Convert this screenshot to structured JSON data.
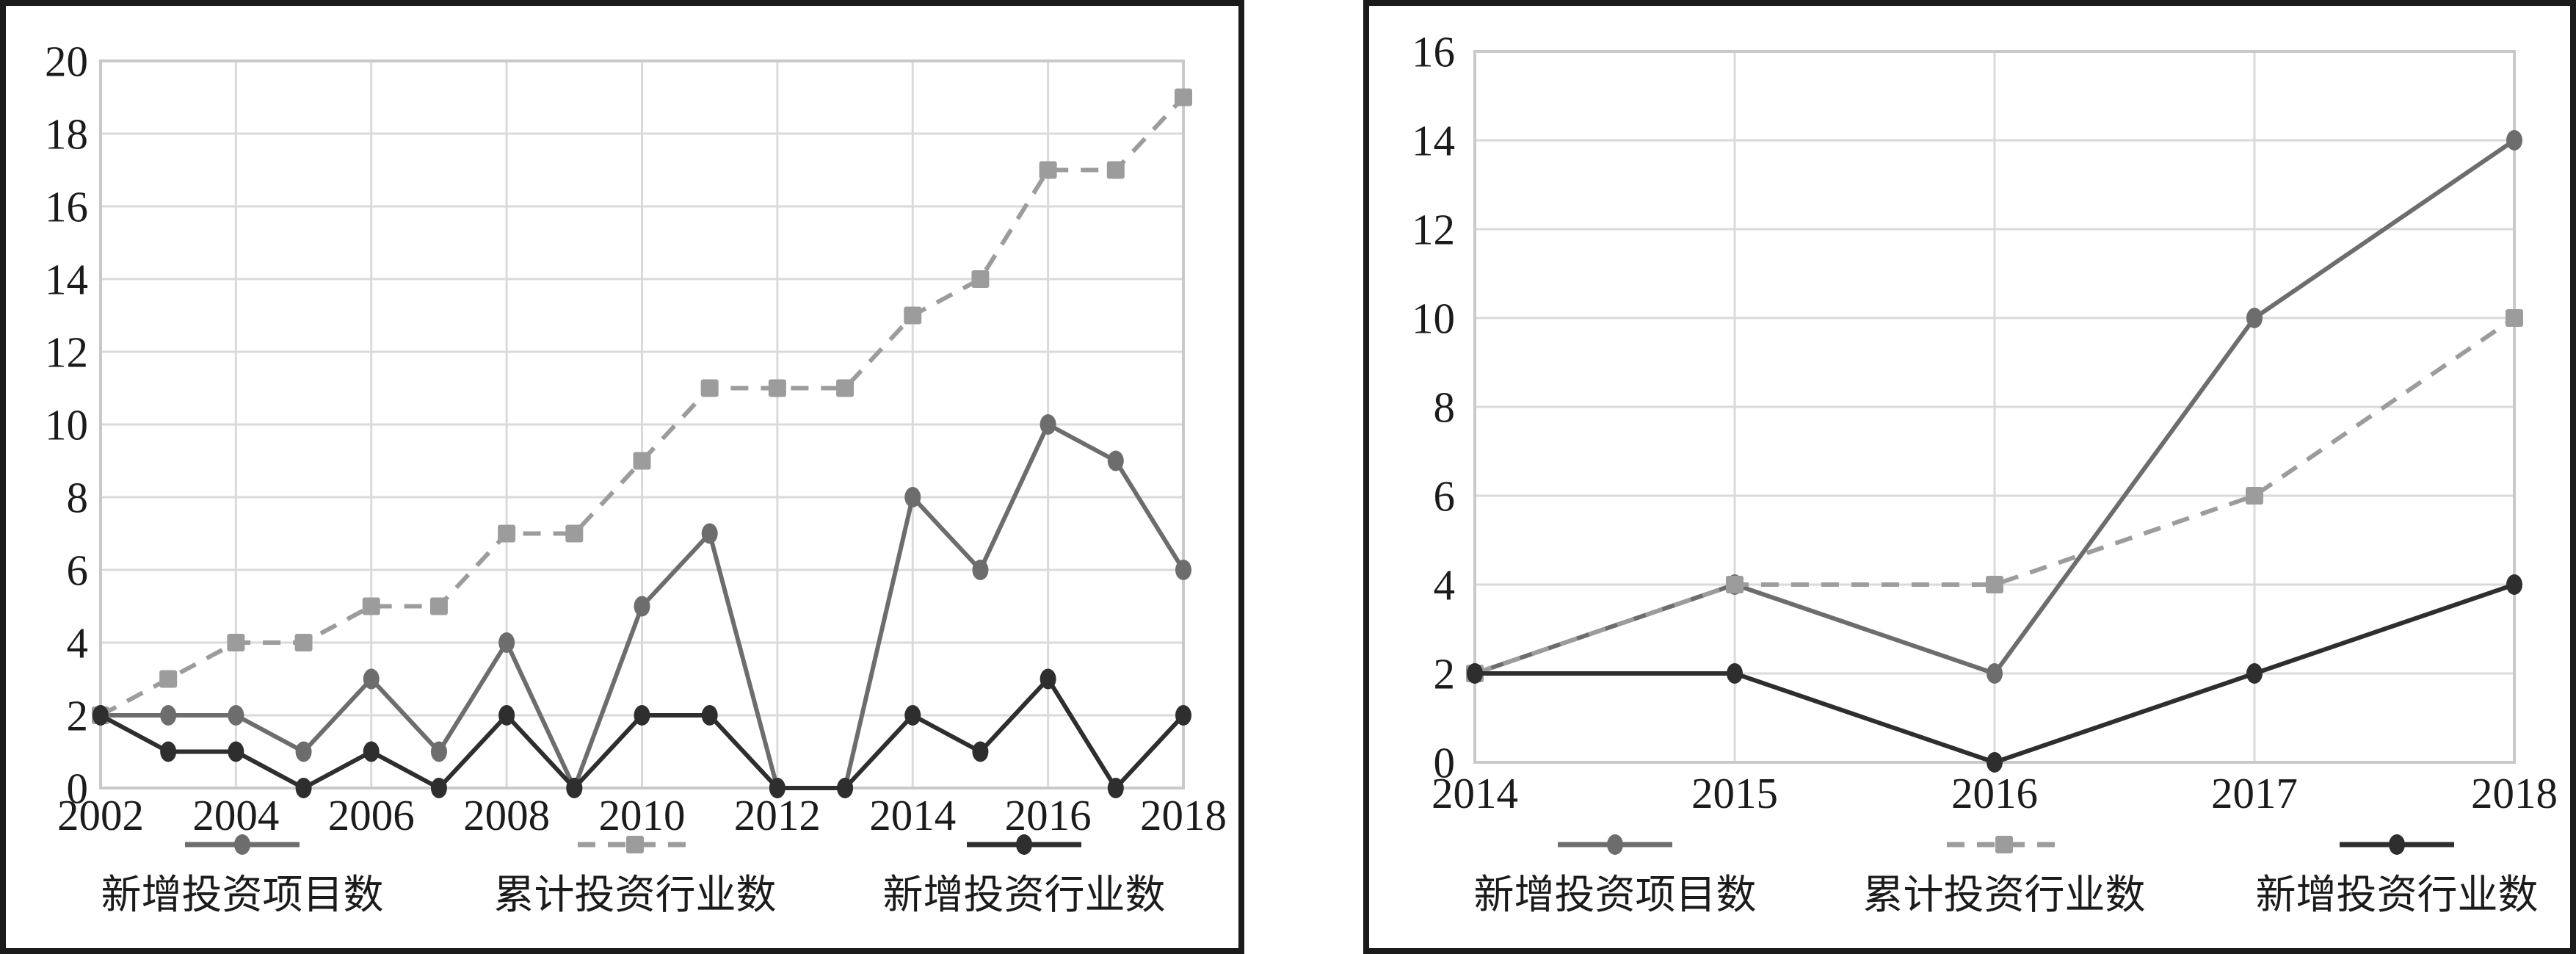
{
  "page": {
    "background": "#ffffff",
    "panel_border_color": "#1b1b1b",
    "gridline_color": "#dadada",
    "plot_frame_color": "#c9c9c9",
    "text_color": "#1b1b1b"
  },
  "chart_data": [
    {
      "type": "line",
      "panel": "left",
      "title": "",
      "xlabel": "",
      "ylabel": "",
      "grid": true,
      "legend_position": "bottom",
      "x": [
        2002,
        2003,
        2004,
        2005,
        2006,
        2007,
        2008,
        2009,
        2010,
        2011,
        2012,
        2013,
        2014,
        2015,
        2016,
        2017,
        2018
      ],
      "x_ticks": [
        2002,
        2004,
        2006,
        2008,
        2010,
        2012,
        2014,
        2016,
        2018
      ],
      "x_tick_labels": [
        "2002",
        "2004",
        "2006",
        "2008",
        "2010",
        "2012",
        "2014",
        "2016",
        "2018"
      ],
      "ylim": [
        0,
        20
      ],
      "y_ticks": [
        0,
        2,
        4,
        6,
        8,
        10,
        12,
        14,
        16,
        18,
        20
      ],
      "y_tick_labels": [
        "0",
        "2",
        "4",
        "6",
        "8",
        "10",
        "12",
        "14",
        "16",
        "18",
        "20"
      ],
      "series": [
        {
          "name": "新增投资项目数",
          "color": "#6d6d6d",
          "line": "solid",
          "marker": "ellipse",
          "values": [
            2,
            2,
            2,
            1,
            3,
            1,
            4,
            0,
            5,
            7,
            0,
            0,
            8,
            6,
            10,
            9,
            6
          ]
        },
        {
          "name": "累计投资行业数",
          "color": "#9c9c9c",
          "line": "dashed",
          "marker": "square",
          "values": [
            2,
            3,
            4,
            4,
            5,
            5,
            7,
            7,
            9,
            11,
            11,
            11,
            13,
            14,
            17,
            17,
            19
          ]
        },
        {
          "name": "新增投资行业数",
          "color": "#2e2e2e",
          "line": "solid",
          "marker": "ellipse",
          "values": [
            2,
            1,
            1,
            0,
            1,
            0,
            2,
            0,
            2,
            2,
            0,
            0,
            2,
            1,
            3,
            0,
            2
          ]
        }
      ]
    },
    {
      "type": "line",
      "panel": "right",
      "title": "",
      "xlabel": "",
      "ylabel": "",
      "grid": true,
      "legend_position": "bottom",
      "x": [
        2014,
        2015,
        2016,
        2017,
        2018
      ],
      "x_ticks": [
        2014,
        2015,
        2016,
        2017,
        2018
      ],
      "x_tick_labels": [
        "2014",
        "2015",
        "2016",
        "2017",
        "2018"
      ],
      "ylim": [
        0,
        16
      ],
      "y_ticks": [
        0,
        2,
        4,
        6,
        8,
        10,
        12,
        14,
        16
      ],
      "y_tick_labels": [
        "0",
        "2",
        "4",
        "6",
        "8",
        "10",
        "12",
        "14",
        "16"
      ],
      "series": [
        {
          "name": "新增投资项目数",
          "color": "#6d6d6d",
          "line": "solid",
          "marker": "ellipse",
          "values": [
            2,
            4,
            2,
            10,
            14
          ]
        },
        {
          "name": "累计投资行业数",
          "color": "#9c9c9c",
          "line": "dashed",
          "marker": "square",
          "values": [
            2,
            4,
            4,
            6,
            10
          ]
        },
        {
          "name": "新增投资行业数",
          "color": "#2e2e2e",
          "line": "solid",
          "marker": "ellipse",
          "values": [
            2,
            2,
            0,
            2,
            4
          ]
        }
      ]
    }
  ]
}
